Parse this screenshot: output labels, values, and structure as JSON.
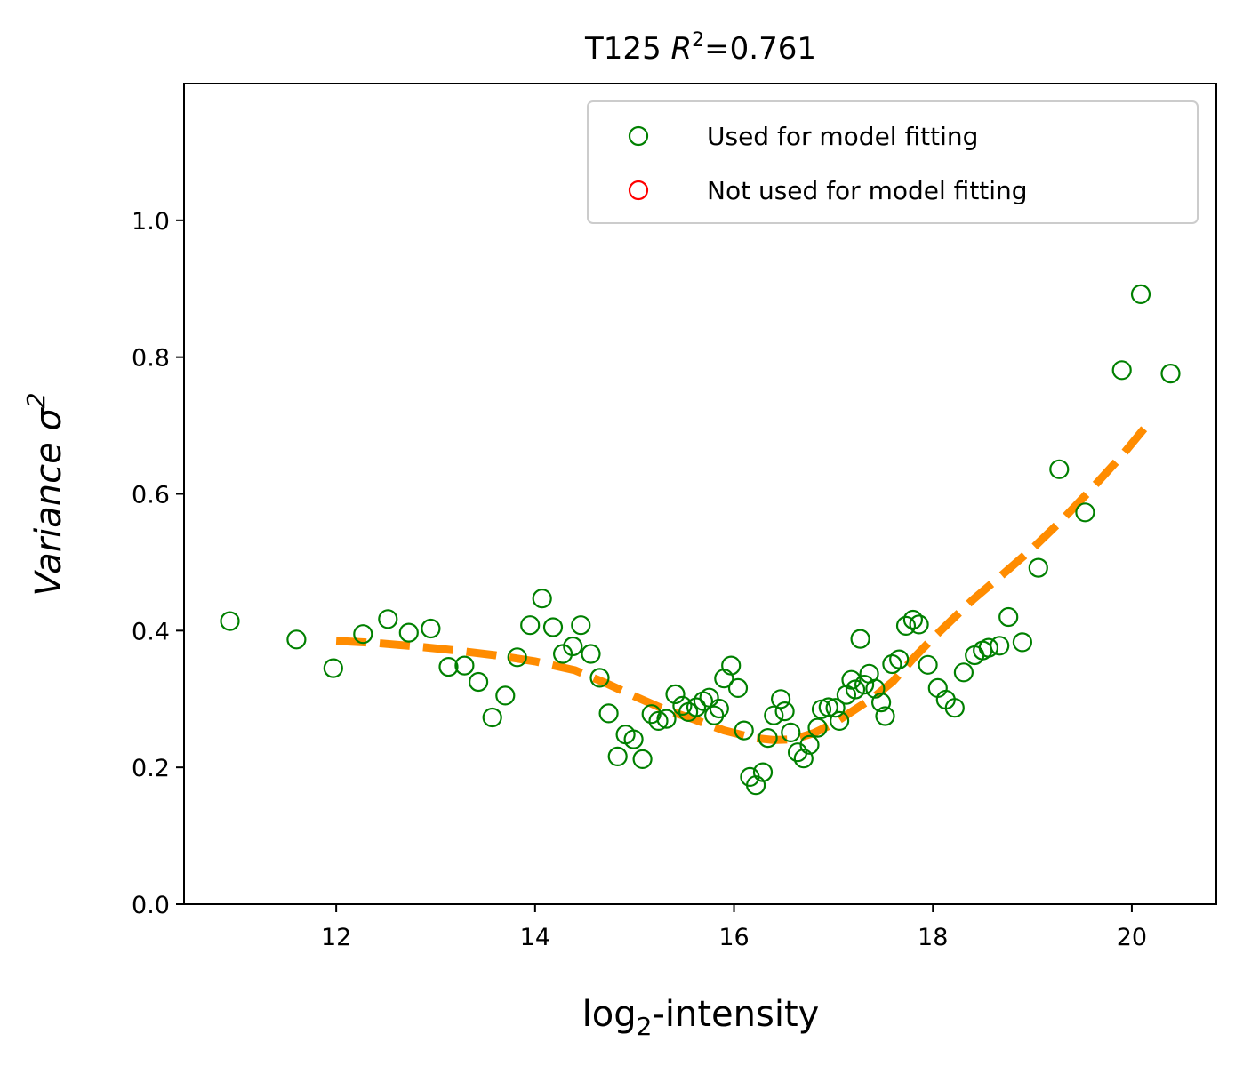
{
  "chart_data": {
    "type": "scatter",
    "title": {
      "prefix": "T125 ",
      "r_symbol": "R",
      "r_exponent": "2",
      "value": "=0.761"
    },
    "xlabel": {
      "prefix": "log",
      "subscript": "2",
      "suffix": "-intensity"
    },
    "ylabel": {
      "text": "Variance σ",
      "exponent": "2"
    },
    "xlim": [
      10.47,
      20.85
    ],
    "ylim": [
      0.0,
      1.2
    ],
    "x_ticks": [
      12,
      14,
      16,
      18,
      20
    ],
    "x_tick_labels": [
      "12",
      "14",
      "16",
      "18",
      "20"
    ],
    "y_ticks": [
      0.0,
      0.2,
      0.4,
      0.6,
      0.8,
      1.0
    ],
    "y_tick_labels": [
      "0.0",
      "0.2",
      "0.4",
      "0.6",
      "0.8",
      "1.0"
    ],
    "grid": false,
    "legend_position": "top-right",
    "legend": [
      {
        "label": "Used for model fitting",
        "color": "#008000",
        "marker": "open-circle"
      },
      {
        "label": "Not used for model fitting",
        "color": "#ff0000",
        "marker": "open-circle"
      }
    ],
    "series": [
      {
        "name": "Used for model fitting",
        "color": "#008000",
        "marker": "open-circle",
        "points": [
          [
            10.93,
            0.414
          ],
          [
            11.6,
            0.387
          ],
          [
            11.97,
            0.345
          ],
          [
            12.27,
            0.395
          ],
          [
            12.52,
            0.417
          ],
          [
            12.73,
            0.397
          ],
          [
            12.95,
            0.403
          ],
          [
            13.13,
            0.347
          ],
          [
            13.29,
            0.349
          ],
          [
            13.43,
            0.325
          ],
          [
            13.57,
            0.273
          ],
          [
            13.7,
            0.305
          ],
          [
            13.82,
            0.361
          ],
          [
            13.95,
            0.408
          ],
          [
            14.07,
            0.447
          ],
          [
            14.18,
            0.405
          ],
          [
            14.28,
            0.366
          ],
          [
            14.38,
            0.377
          ],
          [
            14.46,
            0.408
          ],
          [
            14.56,
            0.366
          ],
          [
            14.65,
            0.331
          ],
          [
            14.74,
            0.279
          ],
          [
            14.83,
            0.216
          ],
          [
            14.91,
            0.248
          ],
          [
            14.99,
            0.241
          ],
          [
            15.08,
            0.212
          ],
          [
            15.17,
            0.278
          ],
          [
            15.24,
            0.268
          ],
          [
            15.32,
            0.271
          ],
          [
            15.41,
            0.307
          ],
          [
            15.48,
            0.29
          ],
          [
            15.54,
            0.281
          ],
          [
            15.62,
            0.288
          ],
          [
            15.69,
            0.297
          ],
          [
            15.75,
            0.302
          ],
          [
            15.8,
            0.276
          ],
          [
            15.85,
            0.286
          ],
          [
            15.9,
            0.33
          ],
          [
            15.97,
            0.349
          ],
          [
            16.04,
            0.316
          ],
          [
            16.1,
            0.254
          ],
          [
            16.16,
            0.186
          ],
          [
            16.22,
            0.174
          ],
          [
            16.29,
            0.193
          ],
          [
            16.34,
            0.243
          ],
          [
            16.4,
            0.276
          ],
          [
            16.47,
            0.3
          ],
          [
            16.51,
            0.282
          ],
          [
            16.57,
            0.251
          ],
          [
            16.64,
            0.222
          ],
          [
            16.7,
            0.213
          ],
          [
            16.76,
            0.233
          ],
          [
            16.84,
            0.258
          ],
          [
            16.88,
            0.285
          ],
          [
            16.95,
            0.288
          ],
          [
            17.02,
            0.287
          ],
          [
            17.06,
            0.268
          ],
          [
            17.13,
            0.306
          ],
          [
            17.18,
            0.328
          ],
          [
            17.22,
            0.314
          ],
          [
            17.27,
            0.388
          ],
          [
            17.31,
            0.321
          ],
          [
            17.36,
            0.337
          ],
          [
            17.42,
            0.315
          ],
          [
            17.48,
            0.295
          ],
          [
            17.52,
            0.275
          ],
          [
            17.59,
            0.351
          ],
          [
            17.66,
            0.358
          ],
          [
            17.73,
            0.407
          ],
          [
            17.8,
            0.416
          ],
          [
            17.86,
            0.409
          ],
          [
            17.95,
            0.35
          ],
          [
            18.05,
            0.316
          ],
          [
            18.13,
            0.299
          ],
          [
            18.22,
            0.287
          ],
          [
            18.31,
            0.339
          ],
          [
            18.42,
            0.364
          ],
          [
            18.5,
            0.371
          ],
          [
            18.56,
            0.375
          ],
          [
            18.67,
            0.378
          ],
          [
            18.76,
            0.42
          ],
          [
            18.9,
            0.383
          ],
          [
            19.06,
            0.492
          ],
          [
            19.27,
            0.636
          ],
          [
            19.53,
            0.573
          ],
          [
            19.9,
            0.781
          ],
          [
            20.09,
            0.892
          ],
          [
            20.39,
            0.776
          ]
        ]
      },
      {
        "name": "Not used for model fitting",
        "color": "#ff0000",
        "marker": "open-circle",
        "points": []
      }
    ],
    "fit_line": {
      "color": "#ff8c00",
      "style": "dashed",
      "points": [
        [
          12.0,
          0.385
        ],
        [
          12.4,
          0.382
        ],
        [
          12.8,
          0.377
        ],
        [
          13.2,
          0.371
        ],
        [
          13.6,
          0.364
        ],
        [
          14.0,
          0.355
        ],
        [
          14.4,
          0.342
        ],
        [
          14.7,
          0.324
        ],
        [
          15.0,
          0.304
        ],
        [
          15.3,
          0.285
        ],
        [
          15.6,
          0.27
        ],
        [
          15.9,
          0.254
        ],
        [
          16.2,
          0.243
        ],
        [
          16.4,
          0.24
        ],
        [
          16.6,
          0.241
        ],
        [
          16.8,
          0.25
        ],
        [
          17.0,
          0.264
        ],
        [
          17.2,
          0.283
        ],
        [
          17.4,
          0.302
        ],
        [
          17.6,
          0.326
        ],
        [
          17.8,
          0.359
        ],
        [
          18.0,
          0.389
        ],
        [
          18.2,
          0.417
        ],
        [
          18.4,
          0.445
        ],
        [
          18.7,
          0.482
        ],
        [
          19.0,
          0.52
        ],
        [
          19.3,
          0.562
        ],
        [
          19.6,
          0.608
        ],
        [
          19.9,
          0.656
        ],
        [
          20.15,
          0.7
        ]
      ]
    }
  }
}
